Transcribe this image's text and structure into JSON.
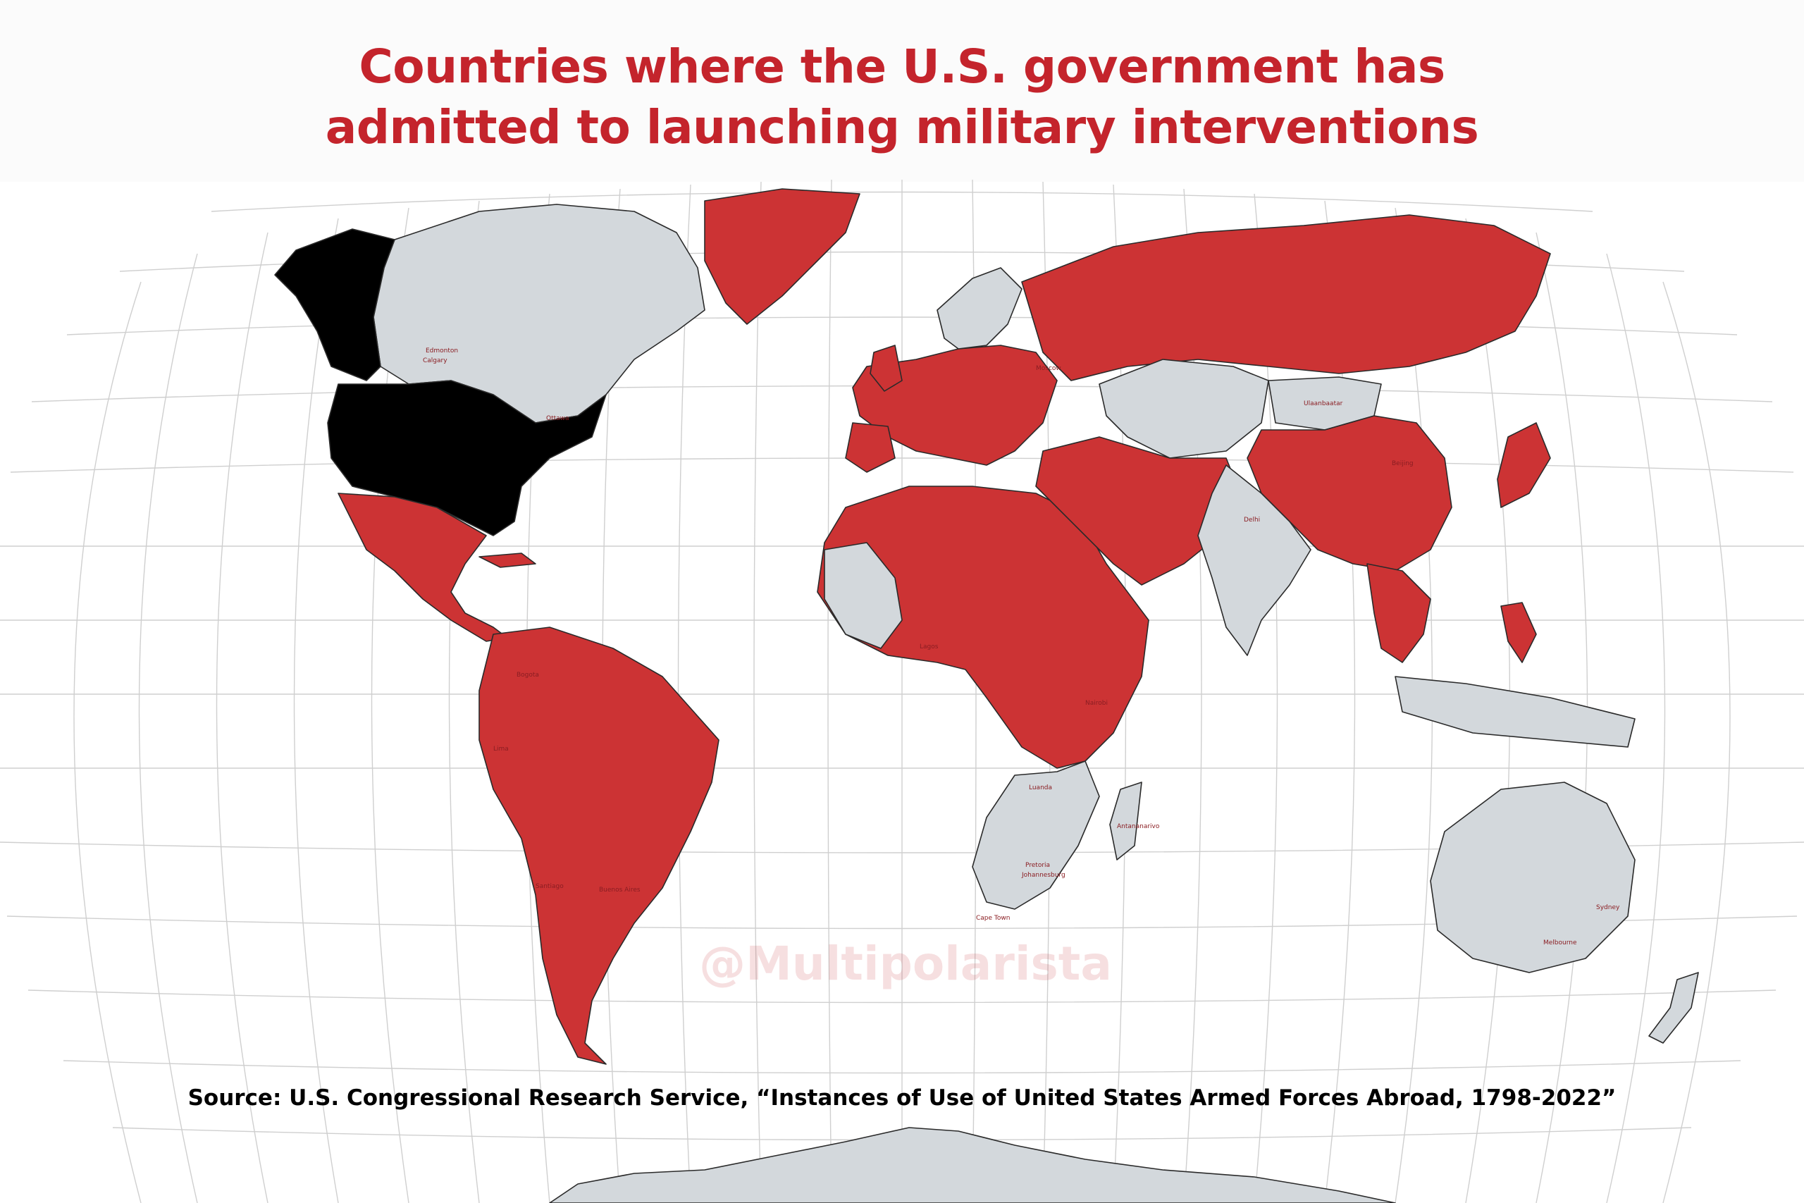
{
  "title": {
    "line1": "Countries where the U.S. government has",
    "line2": "admitted to launching military interventions"
  },
  "source": "Source: U.S. Congressional Research Service, “Instances of Use of United States Armed Forces Abroad, 1798-2022”",
  "watermark": "@Multipolarista",
  "colors": {
    "intervention": "#cc3334",
    "united_states": "#000000",
    "other": "#d3d8dc",
    "graticule": "#cfcfcf",
    "title": "#c4242c"
  },
  "map": {
    "projection": "robinson",
    "graticule": true,
    "regions": [
      {
        "name": "alaska-canada-west",
        "status": "united_states"
      },
      {
        "name": "canada",
        "status": "other"
      },
      {
        "name": "greenland",
        "status": "intervention"
      },
      {
        "name": "united-states",
        "status": "united_states"
      },
      {
        "name": "mexico-central-america",
        "status": "intervention"
      },
      {
        "name": "south-america",
        "status": "intervention"
      },
      {
        "name": "europe",
        "status": "intervention"
      },
      {
        "name": "scandinavia",
        "status": "other"
      },
      {
        "name": "africa",
        "status": "intervention"
      },
      {
        "name": "southern-africa",
        "status": "other"
      },
      {
        "name": "russia",
        "status": "intervention"
      },
      {
        "name": "central-asia",
        "status": "other"
      },
      {
        "name": "middle-east",
        "status": "intervention"
      },
      {
        "name": "india",
        "status": "other"
      },
      {
        "name": "china",
        "status": "intervention"
      },
      {
        "name": "mongolia",
        "status": "other"
      },
      {
        "name": "southeast-asia",
        "status": "intervention"
      },
      {
        "name": "indonesia",
        "status": "other"
      },
      {
        "name": "japan",
        "status": "intervention"
      },
      {
        "name": "australia",
        "status": "other"
      },
      {
        "name": "new-zealand",
        "status": "other"
      },
      {
        "name": "antarctica",
        "status": "other"
      }
    ],
    "city_labels": [
      "Edmonton",
      "Calgary",
      "Ottawa",
      "Bogota",
      "Moscow",
      "Ulaanbaatar",
      "Delhi",
      "Beijing",
      "Luanda",
      "Pretoria",
      "Johannesburg",
      "Cape Town",
      "Sydney",
      "Melbourne",
      "Nairobi",
      "Lagos",
      "Lima",
      "Santiago",
      "Buenos Aires",
      "Antananarivo"
    ]
  }
}
